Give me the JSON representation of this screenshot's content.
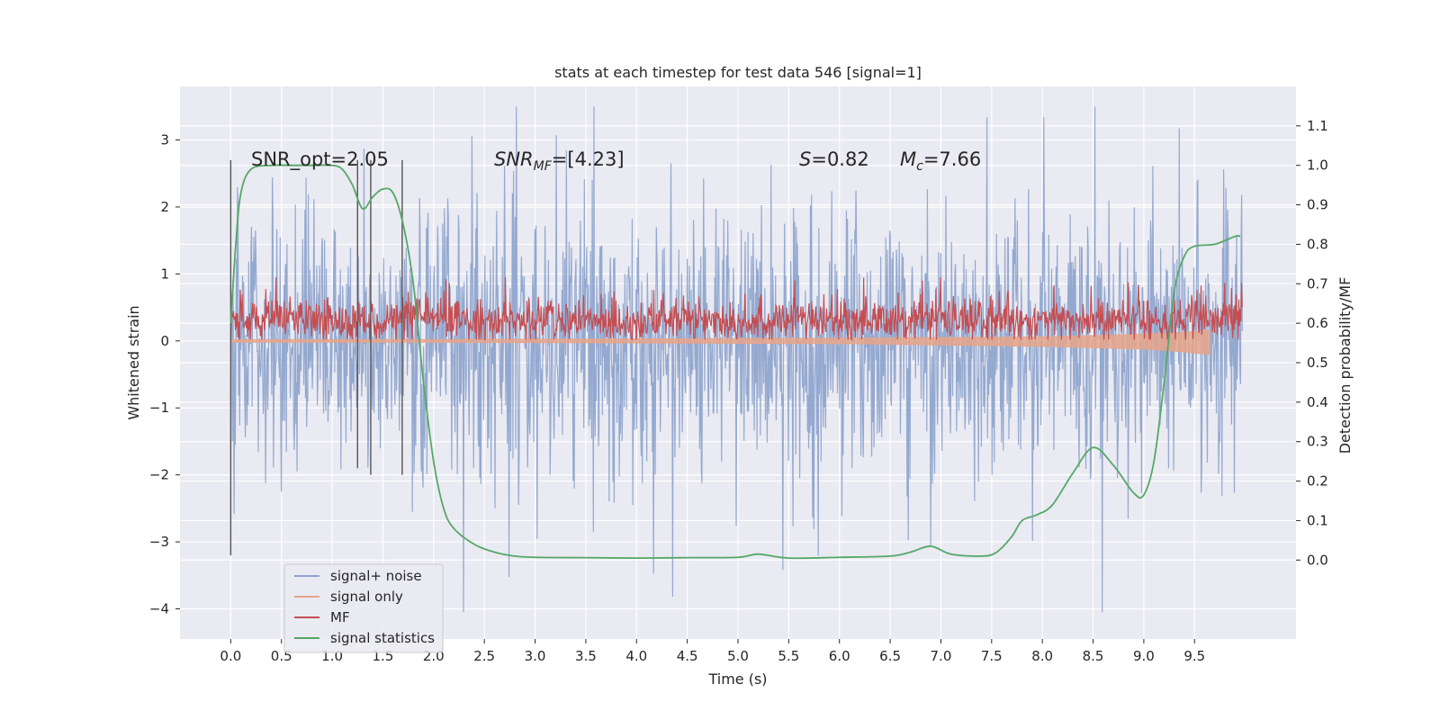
{
  "chart_data": {
    "type": "line",
    "title": "stats at each timestep for test data 546 [signal=1]",
    "xlabel": "Time (s)",
    "ylabel": "Whitened strain",
    "y2label": "Detection probability/MF",
    "xlim": [
      -0.5,
      10.5
    ],
    "ylim": [
      -4.45,
      3.8
    ],
    "y2lim": [
      -0.2,
      1.2
    ],
    "x_ticks": [
      "0.0",
      "0.5",
      "1.0",
      "1.5",
      "2.0",
      "2.5",
      "3.0",
      "3.5",
      "4.0",
      "4.5",
      "5.0",
      "5.5",
      "6.0",
      "6.5",
      "7.0",
      "7.5",
      "8.0",
      "8.5",
      "9.0",
      "9.5"
    ],
    "y_ticks": [
      "3",
      "2",
      "1",
      "0",
      "−1",
      "−2",
      "−3",
      "−4"
    ],
    "y2_ticks": [
      "1.1",
      "1.0",
      "0.9",
      "0.8",
      "0.7",
      "0.6",
      "0.5",
      "0.4",
      "0.3",
      "0.2",
      "0.1",
      "0.0"
    ],
    "grid": true,
    "legend_position": "lower-left",
    "annotations": [
      {
        "id": "snr-opt",
        "text": "SNR_opt=2.05",
        "x": 0.2,
        "y": 2.7
      },
      {
        "id": "snr-mf",
        "text": "[4.23]",
        "x": 2.6,
        "y": 2.7
      },
      {
        "id": "s-val",
        "text": "=0.82",
        "x": 5.62,
        "y": 2.7
      },
      {
        "id": "mc-val",
        "text": "=7.66",
        "x": 6.62,
        "y": 2.7
      }
    ],
    "vertical_markers": [
      {
        "x": 0.0,
        "ymin": -3.2,
        "ymax": 2.7
      },
      {
        "x": 1.25,
        "ymin": -1.9,
        "ymax": 2.7
      },
      {
        "x": 1.38,
        "ymin": -2.0,
        "ymax": 2.7
      },
      {
        "x": 1.69,
        "ymin": -2.0,
        "ymax": 2.7
      }
    ],
    "series": [
      {
        "name": "signal+ noise",
        "color": "#8fa5cd",
        "kind": "noise",
        "x_range": [
          0.0,
          9.97
        ],
        "typical_amplitude": 1.5,
        "max": 3.5,
        "min": -4.05
      },
      {
        "name": "signal only",
        "color": "#e6a58a",
        "kind": "chirp",
        "x": [
          0.0,
          2.0,
          4.0,
          6.0,
          7.0,
          8.0,
          8.5,
          9.0,
          9.3,
          9.5,
          9.65
        ],
        "upper": [
          0.02,
          0.02,
          0.03,
          0.04,
          0.05,
          0.06,
          0.08,
          0.1,
          0.12,
          0.14,
          0.16
        ],
        "lower": [
          -0.02,
          -0.02,
          -0.03,
          -0.04,
          -0.06,
          -0.08,
          -0.1,
          -0.12,
          -0.15,
          -0.18,
          -0.2
        ]
      },
      {
        "name": "MF",
        "color": "#c44e52",
        "kind": "band",
        "x_range": [
          0.0,
          9.97
        ],
        "center": 0.3,
        "lower": 0.02,
        "upper": 0.75,
        "max": 0.95
      },
      {
        "name": "signal statistics",
        "color": "#55a868",
        "kind": "line",
        "axis": "right",
        "x": [
          0.0,
          0.05,
          0.1,
          0.2,
          0.4,
          0.6,
          0.8,
          1.0,
          1.1,
          1.2,
          1.3,
          1.4,
          1.5,
          1.6,
          1.7,
          1.8,
          1.9,
          2.0,
          2.1,
          2.2,
          2.4,
          2.6,
          2.8,
          3.0,
          3.5,
          4.0,
          4.5,
          5.0,
          5.2,
          5.5,
          6.0,
          6.5,
          6.7,
          6.9,
          7.1,
          7.4,
          7.55,
          7.7,
          7.8,
          7.95,
          8.1,
          8.3,
          8.5,
          8.7,
          8.9,
          9.0,
          9.1,
          9.2,
          9.3,
          9.4,
          9.5,
          9.7,
          9.9,
          9.95
        ],
        "y": [
          0.6,
          0.8,
          0.93,
          0.99,
          1.0,
          1.0,
          1.0,
          1.0,
          0.99,
          0.95,
          0.89,
          0.92,
          0.94,
          0.93,
          0.85,
          0.7,
          0.45,
          0.25,
          0.13,
          0.08,
          0.04,
          0.02,
          0.01,
          0.007,
          0.006,
          0.005,
          0.006,
          0.007,
          0.015,
          0.005,
          0.007,
          0.01,
          0.02,
          0.035,
          0.015,
          0.01,
          0.02,
          0.06,
          0.1,
          0.115,
          0.14,
          0.22,
          0.285,
          0.24,
          0.17,
          0.165,
          0.25,
          0.45,
          0.68,
          0.77,
          0.795,
          0.8,
          0.82,
          0.82
        ]
      }
    ]
  },
  "legend": {
    "items": [
      {
        "label": "signal+ noise",
        "color": "#8fa5cd"
      },
      {
        "label": "signal only",
        "color": "#e6a58a"
      },
      {
        "label": "MF",
        "color": "#c44e52"
      },
      {
        "label": "signal statistics",
        "color": "#55a868"
      }
    ]
  }
}
